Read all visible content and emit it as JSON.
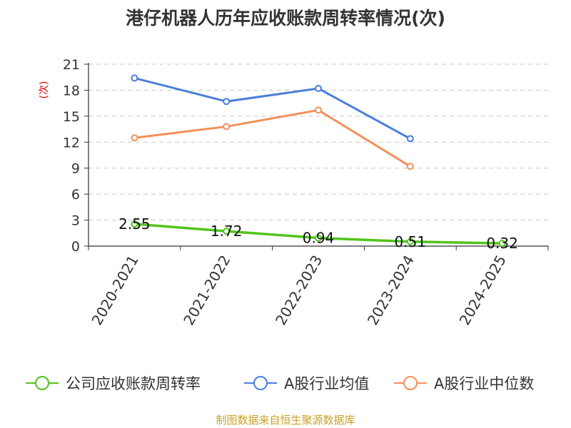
{
  "title": "港仔机器人历年应收账款周转率情况(次)",
  "source": "制图数据来自恒生聚源数据库",
  "colors": {
    "company": "#52c41a",
    "industry_avg": "#4a7fdb",
    "industry_median": "#f4905a",
    "grid": "#c8c8c8",
    "axis": "#333333"
  },
  "chart_data": {
    "type": "line",
    "ylabel": "(次)",
    "ylim": [
      0,
      21
    ],
    "yticks": [
      0,
      3,
      6,
      9,
      12,
      15,
      18,
      21
    ],
    "grid": true,
    "legend_position": "bottom",
    "categories": [
      "2020-2021",
      "2021-2022",
      "2022-2023",
      "2023-2024",
      "2024-2025"
    ],
    "series": [
      {
        "name": "公司应收账款周转率",
        "color": "#52c41a",
        "values": [
          2.55,
          1.72,
          0.94,
          0.51,
          0.32
        ],
        "labels": [
          "2.55",
          "1.72",
          "0.94",
          "0.51",
          "0.32"
        ]
      },
      {
        "name": "A股行业均值",
        "color": "#4a7fdb",
        "values": [
          19.4,
          16.7,
          18.2,
          12.4,
          null
        ]
      },
      {
        "name": "A股行业中位数",
        "color": "#f4905a",
        "values": [
          12.5,
          13.8,
          15.7,
          9.2,
          null
        ]
      }
    ]
  }
}
